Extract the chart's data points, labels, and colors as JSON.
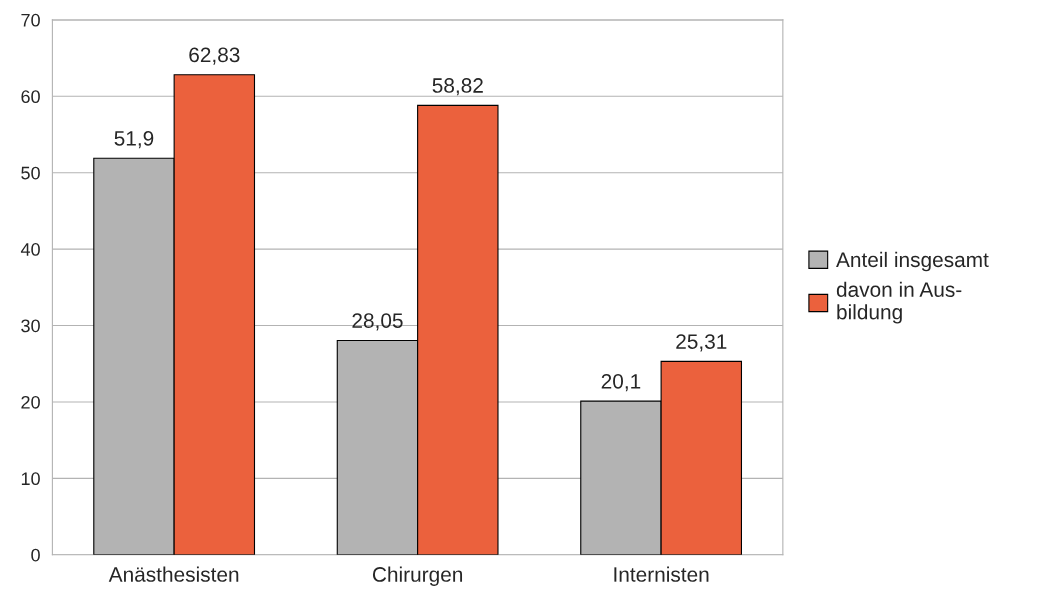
{
  "chart_data": {
    "type": "bar",
    "categories": [
      "Anästhesisten",
      "Chirurgen",
      "Internisten"
    ],
    "series": [
      {
        "name": "Anteil insgesamt",
        "color": "#b3b3b3",
        "values": [
          51.9,
          28.05,
          20.1
        ],
        "value_labels": [
          "51,9",
          "28,05",
          "20,1"
        ]
      },
      {
        "name": "davon in Aus-\nbildung",
        "color": "#eb613d",
        "values": [
          62.83,
          58.82,
          25.31
        ],
        "value_labels": [
          "62,83",
          "58,82",
          "25,31"
        ]
      }
    ],
    "ylim": [
      0,
      70
    ],
    "yticks": [
      0,
      10,
      20,
      30,
      40,
      50,
      60,
      70
    ],
    "grid": "y",
    "legend": "right"
  }
}
